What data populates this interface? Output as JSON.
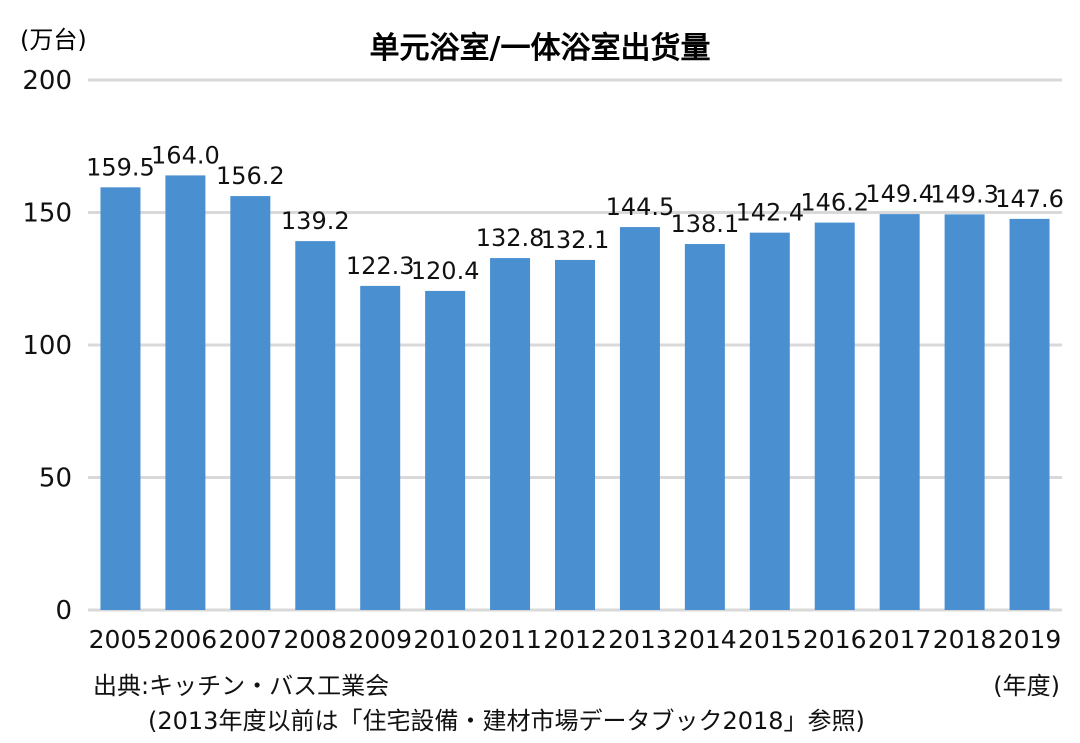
{
  "chart_data": {
    "type": "bar",
    "title": "单元浴室/一体浴室出货量",
    "y_unit": "(万台)",
    "x_unit": "(年度)",
    "ylim": [
      0,
      200
    ],
    "yticks": [
      0,
      50,
      100,
      150,
      200
    ],
    "grid": true,
    "bar_color": "#4a90d0",
    "categories": [
      "2005",
      "2006",
      "2007",
      "2008",
      "2009",
      "2010",
      "2011",
      "2012",
      "2013",
      "2014",
      "2015",
      "2016",
      "2017",
      "2018",
      "2019"
    ],
    "values": [
      159.5,
      164.0,
      156.2,
      139.2,
      122.3,
      120.4,
      132.8,
      132.1,
      144.5,
      138.1,
      142.4,
      146.2,
      149.4,
      149.3,
      147.6
    ],
    "labels": [
      "159.5",
      "164.0",
      "156.2",
      "139.2",
      "122.3",
      "120.4",
      "132.8",
      "132.1",
      "144.5",
      "138.1",
      "142.4",
      "146.2",
      "149.4",
      "149.3",
      "147.6"
    ]
  },
  "source": {
    "line1": "出典:キッチン・バス工業会",
    "line2": "(2013年度以前は「住宅設備・建材市場データブック2018」参照)"
  }
}
